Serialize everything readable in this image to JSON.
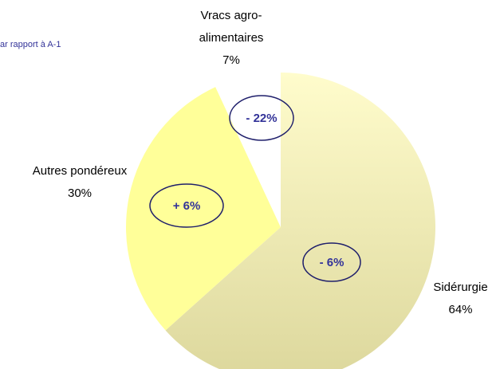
{
  "chart_data": {
    "type": "pie",
    "subtitle": "ar rapport à A-1",
    "categories": [
      "Sidérurgie",
      "Autres pondéreux",
      "Vracs agro-alimentaires"
    ],
    "values": [
      64,
      30,
      7
    ],
    "value_labels": [
      "64%",
      "30%",
      "7%"
    ],
    "colors": [
      "#ebe6ad",
      "#ffff99",
      "#ffffff"
    ],
    "annotations": [
      "- 6%",
      "+ 6%",
      "- 22%"
    ]
  }
}
